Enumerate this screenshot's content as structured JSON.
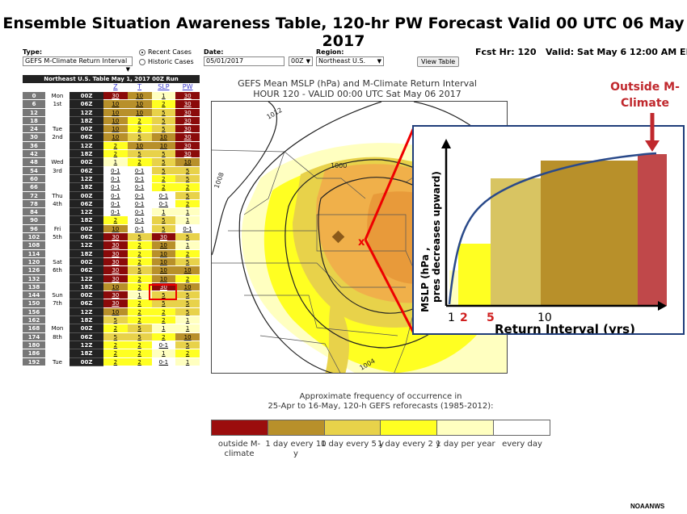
{
  "title": "Ensemble Situation Awareness Table, 120-hr PW Forecast Valid 00 UTC 06 May 2017",
  "controls": {
    "type_label": "Type:",
    "type_value": "GEFS M-Climate Return Interval",
    "radio_recent": "Recent Cases",
    "radio_historic": "Historic Cases",
    "date_label": "Date:",
    "date_value": "05/01/2017",
    "cycle_value": "00Z",
    "region_label": "Region:",
    "region_value": "Northeast U.S.",
    "view_button": "View Table",
    "fcst_hr": "Fcst Hr: 120",
    "valid": "Valid: Sat May 6 12:00 AM ED"
  },
  "table": {
    "header": "Northeast U.S. Table   May 1, 2017 00Z Run",
    "columns": [
      "Z",
      "T",
      "SLP",
      "PW"
    ],
    "days": [
      {
        "name": "Mon",
        "date": "1st"
      },
      {
        "name": "Tue",
        "date": "2nd"
      },
      {
        "name": "Wed",
        "date": "3rd"
      },
      {
        "name": "Thu",
        "date": "4th"
      },
      {
        "name": "Fri",
        "date": "5th"
      },
      {
        "name": "Sat",
        "date": "6th"
      },
      {
        "name": "Sun",
        "date": "7th"
      },
      {
        "name": "Mon",
        "date": "8th"
      },
      {
        "name": "Tue",
        "date": "9th"
      }
    ],
    "rows": [
      {
        "hr": "0",
        "z": "00Z",
        "v": [
          "30",
          "10",
          "1",
          "30"
        ]
      },
      {
        "hr": "6",
        "z": "06Z",
        "v": [
          "10",
          "10",
          "2",
          "30"
        ]
      },
      {
        "hr": "12",
        "z": "12Z",
        "v": [
          "10",
          "10",
          "5",
          "30"
        ]
      },
      {
        "hr": "18",
        "z": "18Z",
        "v": [
          "10",
          "2",
          "5",
          "30"
        ]
      },
      {
        "hr": "24",
        "z": "00Z",
        "v": [
          "10",
          "2",
          "5",
          "30"
        ]
      },
      {
        "hr": "30",
        "z": "06Z",
        "v": [
          "10",
          "5",
          "10",
          "30"
        ]
      },
      {
        "hr": "36",
        "z": "12Z",
        "v": [
          "2",
          "10",
          "10",
          "30"
        ]
      },
      {
        "hr": "42",
        "z": "18Z",
        "v": [
          "2",
          "5",
          "5",
          "30"
        ]
      },
      {
        "hr": "48",
        "z": "00Z",
        "v": [
          "1",
          "2",
          "5",
          "10"
        ]
      },
      {
        "hr": "54",
        "z": "06Z",
        "v": [
          "0-1",
          "0-1",
          "5",
          "5"
        ]
      },
      {
        "hr": "60",
        "z": "12Z",
        "v": [
          "0-1",
          "0-1",
          "2",
          "5"
        ]
      },
      {
        "hr": "66",
        "z": "18Z",
        "v": [
          "0-1",
          "0-1",
          "2",
          "2"
        ]
      },
      {
        "hr": "72",
        "z": "00Z",
        "v": [
          "0-1",
          "0-1",
          "0-1",
          "5"
        ]
      },
      {
        "hr": "78",
        "z": "06Z",
        "v": [
          "0-1",
          "0-1",
          "0-1",
          "2"
        ]
      },
      {
        "hr": "84",
        "z": "12Z",
        "v": [
          "0-1",
          "0-1",
          "1",
          "1"
        ]
      },
      {
        "hr": "90",
        "z": "18Z",
        "v": [
          "2",
          "0-1",
          "5",
          "1"
        ]
      },
      {
        "hr": "96",
        "z": "00Z",
        "v": [
          "10",
          "0-1",
          "5",
          "0-1"
        ]
      },
      {
        "hr": "102",
        "z": "06Z",
        "v": [
          "30",
          "5",
          "30",
          "5"
        ]
      },
      {
        "hr": "108",
        "z": "12Z",
        "v": [
          "30",
          "2",
          "10",
          "1"
        ]
      },
      {
        "hr": "114",
        "z": "18Z",
        "v": [
          "30",
          "2",
          "10",
          "2"
        ]
      },
      {
        "hr": "120",
        "z": "00Z",
        "v": [
          "30",
          "2",
          "10",
          "5"
        ]
      },
      {
        "hr": "126",
        "z": "06Z",
        "v": [
          "30",
          "5",
          "10",
          "10"
        ]
      },
      {
        "hr": "132",
        "z": "12Z",
        "v": [
          "30",
          "2",
          "10",
          "2"
        ]
      },
      {
        "hr": "138",
        "z": "18Z",
        "v": [
          "10",
          "2",
          "30",
          "10"
        ]
      },
      {
        "hr": "144",
        "z": "00Z",
        "v": [
          "30",
          "1",
          "5",
          "5"
        ]
      },
      {
        "hr": "150",
        "z": "06Z",
        "v": [
          "30",
          "2",
          "5",
          "5"
        ]
      },
      {
        "hr": "156",
        "z": "12Z",
        "v": [
          "10",
          "2",
          "2",
          "5"
        ]
      },
      {
        "hr": "162",
        "z": "18Z",
        "v": [
          "5",
          "2",
          "2",
          "1"
        ]
      },
      {
        "hr": "168",
        "z": "00Z",
        "v": [
          "2",
          "5",
          "1",
          "1"
        ]
      },
      {
        "hr": "174",
        "z": "06Z",
        "v": [
          "5",
          "5",
          "2",
          "10"
        ]
      },
      {
        "hr": "180",
        "z": "12Z",
        "v": [
          "2",
          "2",
          "0-1",
          "5"
        ]
      },
      {
        "hr": "186",
        "z": "18Z",
        "v": [
          "2",
          "2",
          "1",
          "2"
        ]
      },
      {
        "hr": "192",
        "z": "00Z",
        "v": [
          "2",
          "2",
          "0-1",
          "1"
        ]
      }
    ]
  },
  "map": {
    "title_line1": "GEFS Mean MSLP (hPa) and M-Climate Return Interval",
    "title_line2": "HOUR 120 - VALID 00:00 UTC Sat May 06 2017",
    "isobars": [
      "1012",
      "1008",
      "1004",
      "1000"
    ]
  },
  "inset": {
    "outside_label": "Outside M-Climate",
    "ylabel": "MSLP (hPa , pres decreases upward)",
    "xlabel": "Return Interval (yrs)",
    "ticks": [
      {
        "label": "1",
        "color": "#000000"
      },
      {
        "label": "2",
        "color": "#d02020"
      },
      {
        "label": "5",
        "color": "#d02020"
      },
      {
        "label": "10",
        "color": "#000000"
      }
    ]
  },
  "legend": {
    "title_line1": "Approximate frequency of occurrence in",
    "title_line2": "25-Apr to 16-May, 120-h GEFS reforecasts (1985-2012):",
    "items": [
      {
        "label": "outside M-climate",
        "color": "#9b0d0d"
      },
      {
        "label": "1 day every 10 y",
        "color": "#b8902a"
      },
      {
        "label": "1 day every 5 y",
        "color": "#e8d24a"
      },
      {
        "label": "1 day every 2 y",
        "color": "#ffff22"
      },
      {
        "label": "1 day per year",
        "color": "#ffffc0"
      },
      {
        "label": "every day",
        "color": "#ffffff"
      }
    ]
  },
  "credit": "NOAANWS"
}
